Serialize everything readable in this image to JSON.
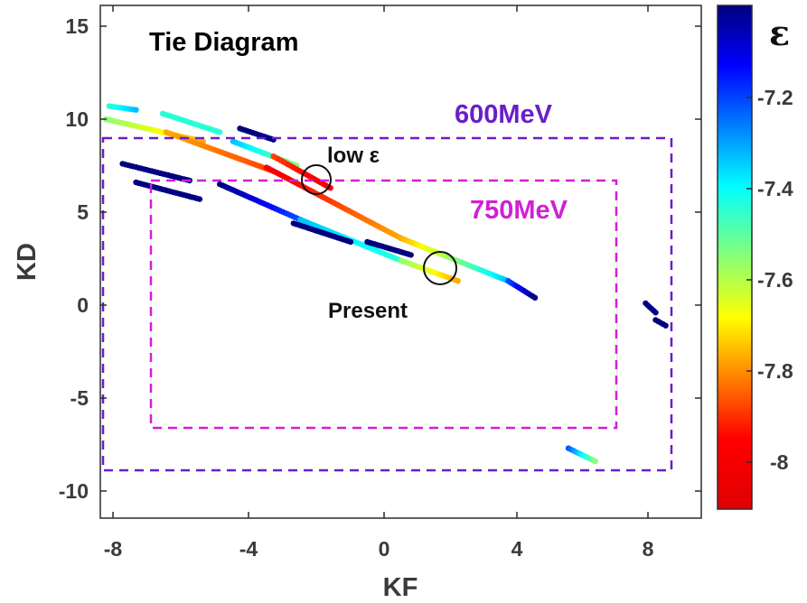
{
  "chart_data": {
    "type": "scatter",
    "title": "Tie Diagram",
    "xlabel": "KF",
    "ylabel": "KD",
    "xlim": [
      -8.4,
      9.4
    ],
    "ylim": [
      -11.5,
      16
    ],
    "x_ticks": [
      -8,
      -4,
      0,
      4,
      8
    ],
    "y_ticks": [
      15,
      10,
      5,
      0,
      -5,
      -10
    ],
    "grid": false,
    "colorbar": {
      "label": "ε",
      "range": [
        -8.1,
        -7.1
      ],
      "ticks": [
        -7.2,
        -7.4,
        -7.6,
        -7.8,
        -8
      ],
      "colormap": "jet-reversed"
    },
    "annotations": [
      {
        "text": "low ε",
        "x": -1.0,
        "y": 7.9,
        "circle": {
          "x": -2.0,
          "y": 6.6
        }
      },
      {
        "text": "Present",
        "x": -1.7,
        "y": -0.6,
        "circle": {
          "x": 1.7,
          "y": 1.9
        }
      }
    ],
    "boxes": [
      {
        "label": "600MeV",
        "xlim": [
          -8.35,
          8.6
        ],
        "ylim": [
          -8.9,
          8.9
        ],
        "color": "#6a1ec8"
      },
      {
        "label": "750MeV",
        "xlim": [
          -7.0,
          7.0
        ],
        "ylim": [
          -6.6,
          6.6
        ],
        "color": "#d11fd8"
      }
    ],
    "bands": [
      {
        "x0": -8.2,
        "y0": 10.7,
        "x1": -7.4,
        "y1": 10.5,
        "c0": -7.5,
        "c1": -7.4
      },
      {
        "x0": -8.3,
        "y0": 10.0,
        "x1": -5.4,
        "y1": 8.8,
        "c0": -7.6,
        "c1": -7.8
      },
      {
        "x0": -6.6,
        "y0": 10.3,
        "x1": -4.9,
        "y1": 9.3,
        "c0": -7.5,
        "c1": -7.5
      },
      {
        "x0": -6.5,
        "y0": 9.3,
        "x1": -3.3,
        "y1": 7.2,
        "c0": -7.8,
        "c1": -7.9
      },
      {
        "x0": -4.5,
        "y0": 8.8,
        "x1": -2.6,
        "y1": 7.5,
        "c0": -7.4,
        "c1": -7.6
      },
      {
        "x0": -4.3,
        "y0": 9.5,
        "x1": -3.3,
        "y1": 8.9,
        "c0": -7.1,
        "c1": -7.1
      },
      {
        "x0": -3.3,
        "y0": 8.0,
        "x1": -1.6,
        "y1": 6.3,
        "c0": -7.9,
        "c1": -8.0
      },
      {
        "x0": -3.5,
        "y0": 7.4,
        "x1": 0.5,
        "y1": 3.6,
        "c0": -8.0,
        "c1": -7.8
      },
      {
        "x0": 0.5,
        "y0": 3.6,
        "x1": 3.7,
        "y1": 1.3,
        "c0": -7.8,
        "c1": -7.4
      },
      {
        "x0": 3.7,
        "y0": 1.3,
        "x1": 4.5,
        "y1": 0.4,
        "c0": -7.3,
        "c1": -7.1
      },
      {
        "x0": -4.9,
        "y0": 6.5,
        "x1": -2.5,
        "y1": 4.6,
        "c0": -7.1,
        "c1": -7.3
      },
      {
        "x0": -2.5,
        "y0": 4.6,
        "x1": 0.5,
        "y1": 2.4,
        "c0": -7.4,
        "c1": -7.5
      },
      {
        "x0": 0.5,
        "y0": 2.4,
        "x1": 2.2,
        "y1": 1.3,
        "c0": -7.6,
        "c1": -7.8
      },
      {
        "x0": -7.8,
        "y0": 7.6,
        "x1": -5.8,
        "y1": 6.7,
        "c0": -7.1,
        "c1": -7.1
      },
      {
        "x0": -7.4,
        "y0": 6.6,
        "x1": -5.5,
        "y1": 5.7,
        "c0": -7.1,
        "c1": -7.1
      },
      {
        "x0": -2.7,
        "y0": 4.4,
        "x1": -1.0,
        "y1": 3.4,
        "c0": -7.1,
        "c1": -7.1
      },
      {
        "x0": -0.5,
        "y0": 3.4,
        "x1": 0.8,
        "y1": 2.7,
        "c0": -7.1,
        "c1": -7.1
      },
      {
        "x0": 5.5,
        "y0": -7.7,
        "x1": 6.3,
        "y1": -8.4,
        "c0": -7.3,
        "c1": -7.6
      },
      {
        "x0": 7.8,
        "y0": 0.1,
        "x1": 8.1,
        "y1": -0.4,
        "c0": -7.1,
        "c1": -7.1
      },
      {
        "x0": 8.1,
        "y0": -0.8,
        "x1": 8.4,
        "y1": -1.1,
        "c0": -7.1,
        "c1": -7.1
      }
    ]
  }
}
